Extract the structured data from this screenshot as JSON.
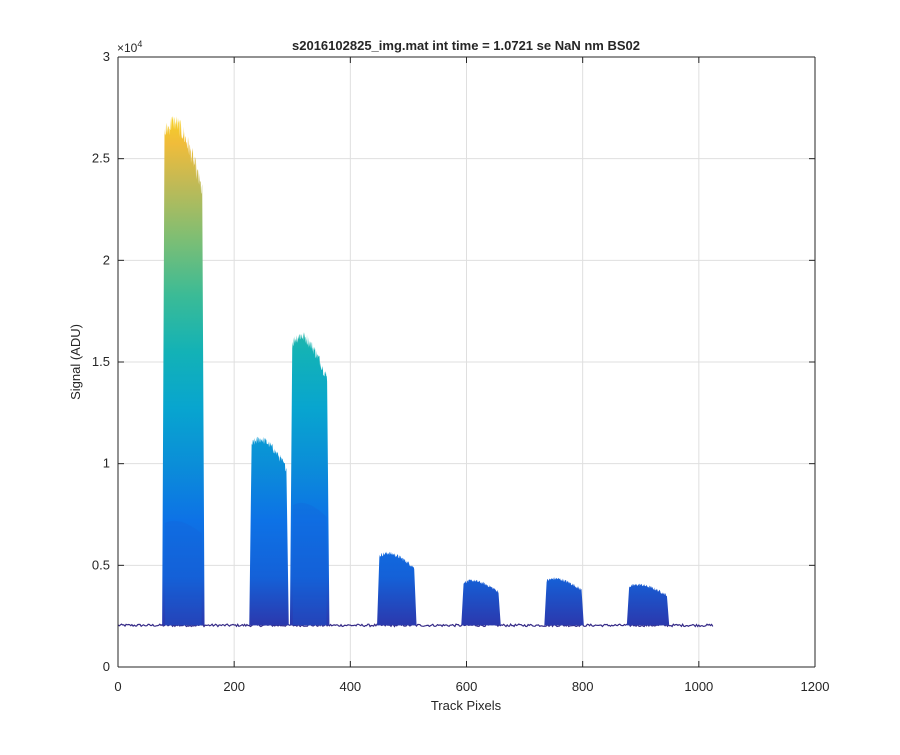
{
  "chart_data": {
    "type": "area",
    "title": "s2016102825_img.mat int time = 1.0721 se  NaN nm BS02",
    "xlabel": "Track Pixels",
    "ylabel": "Signal (ADU)",
    "xlim": [
      0,
      1200
    ],
    "ylim": [
      0,
      30000
    ],
    "y_exponent_label": "×10",
    "y_exponent_power": "4",
    "xticks": [
      0,
      200,
      400,
      600,
      800,
      1000,
      1200
    ],
    "xtick_labels": [
      "0",
      "200",
      "400",
      "600",
      "800",
      "1000",
      "1200"
    ],
    "yticks": [
      0,
      5000,
      10000,
      15000,
      20000,
      25000,
      30000
    ],
    "ytick_labels": [
      "0",
      "0.5",
      "1",
      "1.5",
      "2",
      "2.5",
      "3"
    ],
    "grid": true,
    "legend": "none",
    "colormap": "parula",
    "baseline_signal": 2050,
    "track_pixel_range": [
      0,
      1024
    ],
    "peaks": [
      {
        "x_start": 80,
        "x_end": 145,
        "peak_signal": 26800,
        "inner_step_signal": 7300
      },
      {
        "x_start": 230,
        "x_end": 290,
        "peak_signal": 11200
      },
      {
        "x_start": 300,
        "x_end": 360,
        "peak_signal": 16300,
        "inner_step_signal": 8200
      },
      {
        "x_start": 450,
        "x_end": 510,
        "peak_signal": 5600
      },
      {
        "x_start": 595,
        "x_end": 655,
        "peak_signal": 4250
      },
      {
        "x_start": 738,
        "x_end": 798,
        "peak_signal": 4350
      },
      {
        "x_start": 880,
        "x_end": 945,
        "peak_signal": 4050
      }
    ]
  }
}
